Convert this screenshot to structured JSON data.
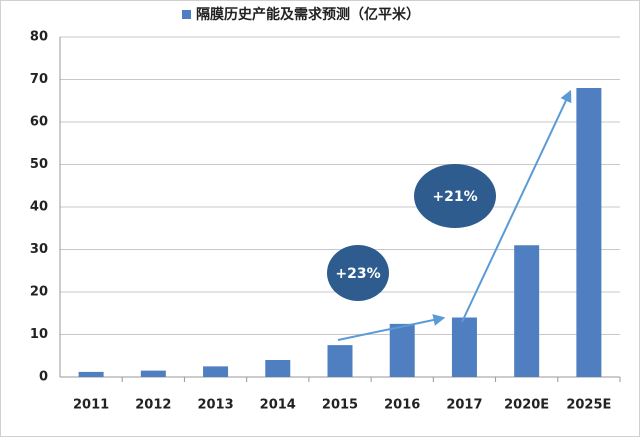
{
  "chart_data": {
    "type": "bar",
    "categories": [
      "2011",
      "2012",
      "2013",
      "2014",
      "2015",
      "2016",
      "2017",
      "2020E",
      "2025E"
    ],
    "series": [
      {
        "name": "隔膜历史产能及需求预测（亿平米）",
        "color": "#4f7fc0",
        "values": [
          1.2,
          1.5,
          2.5,
          4,
          7.5,
          12.5,
          14,
          31,
          68
        ]
      }
    ],
    "ylim": [
      0,
      80
    ],
    "yticks": [
      0,
      10,
      20,
      30,
      40,
      50,
      60,
      70,
      80
    ],
    "grid": true,
    "legend": "top",
    "annotations": [
      "+23%",
      "+21%"
    ]
  }
}
